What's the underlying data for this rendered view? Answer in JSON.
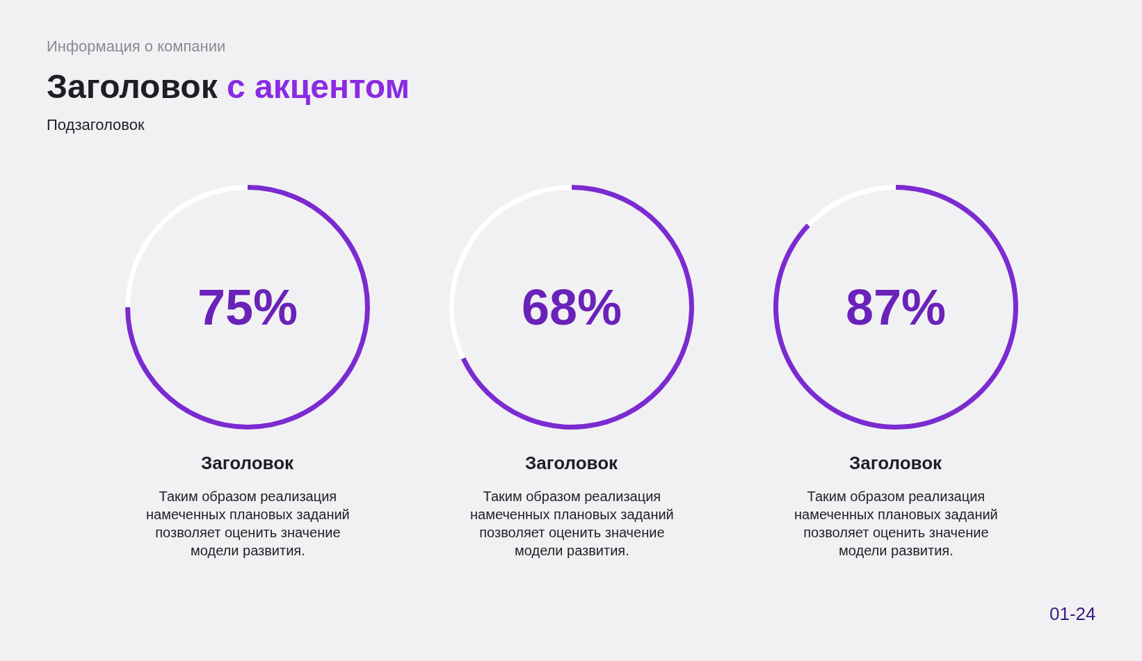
{
  "chart_data": [
    {
      "type": "donut",
      "title": "Заголовок с акцентом",
      "subtitle": "Подзаголовок",
      "annotations": [
        "Информация о компании",
        "01-24",
        "75%",
        "Таким образом реализация намеченных плановых заданий позволяет оценить значение модели развития."
      ],
      "xlabel": "Заголовок",
      "categories": [
        null,
        null
      ],
      "values": [
        75,
        25
      ],
      "colors": [
        "#7b2bd0",
        "#ffffff"
      ]
    },
    {
      "type": "donut",
      "xlabel": "Заголовок",
      "annotations": [
        "68%",
        "Таким образом реализация намеченных плановых заданий позволяет оценить значение модели развития."
      ],
      "categories": [
        null,
        null
      ],
      "values": [
        68,
        32
      ],
      "colors": [
        "#7b2bd0",
        "#ffffff"
      ]
    },
    {
      "type": "donut",
      "xlabel": "Заголовок",
      "annotations": [
        "87%",
        "Таким образом реализация намеченных плановых заданий позволяет оценить значение модели развития."
      ],
      "categories": [
        null,
        null
      ],
      "values": [
        87,
        13
      ],
      "colors": [
        "#7b2bd0",
        "#ffffff"
      ]
    }
  ]
}
